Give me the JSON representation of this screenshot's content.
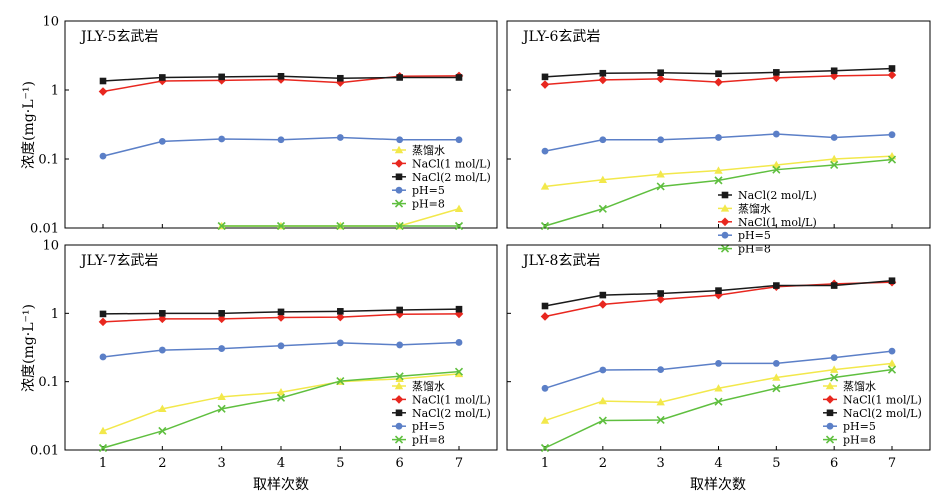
{
  "figure": {
    "xlabel": "取样次数",
    "ylabel": "浓度(mg·L⁻¹)",
    "x_ticks": [
      "1",
      "2",
      "3",
      "4",
      "5",
      "6",
      "7"
    ],
    "y_ticks": [
      "10",
      "1",
      "0.1",
      "0.01"
    ]
  },
  "chart_data": [
    {
      "type": "line",
      "title": "JLY-5玄武岩",
      "yscale": "log",
      "ylim": [
        0.01,
        10
      ],
      "x": [
        1,
        2,
        3,
        4,
        5,
        6,
        7
      ],
      "legend_position": "bottom-right",
      "legend_order": [
        0,
        1,
        2,
        3,
        4
      ],
      "series": [
        {
          "name": "蒸馏水",
          "color": "#f2e84b",
          "marker": "triangle",
          "values": [
            null,
            null,
            0.009,
            0.009,
            0.009,
            0.0095,
            0.019
          ]
        },
        {
          "name": "NaCl(1 mol/L)",
          "color": "#e8271f",
          "marker": "diamond",
          "values": [
            0.95,
            1.35,
            1.38,
            1.42,
            1.28,
            1.58,
            1.6
          ]
        },
        {
          "name": "NaCl(2 mol/L)",
          "color": "#1a1a1a",
          "marker": "square",
          "values": [
            1.35,
            1.52,
            1.55,
            1.58,
            1.48,
            1.52,
            1.52
          ]
        },
        {
          "name": "pH=5",
          "color": "#5b7fc7",
          "marker": "circle",
          "values": [
            0.11,
            0.18,
            0.195,
            0.19,
            0.205,
            0.19,
            0.19
          ]
        },
        {
          "name": "pH=8",
          "color": "#5fbf3f",
          "marker": "cross",
          "values": [
            null,
            null,
            0.009,
            0.009,
            0.009,
            0.009,
            0.009
          ]
        }
      ]
    },
    {
      "type": "line",
      "title": "JLY-6玄武岩",
      "yscale": "log",
      "ylim": [
        0.01,
        10
      ],
      "x": [
        1,
        2,
        3,
        4,
        5,
        6,
        7
      ],
      "legend_position": "bottom-center",
      "legend_order": [
        2,
        0,
        1,
        3,
        4
      ],
      "series": [
        {
          "name": "蒸馏水",
          "color": "#f2e84b",
          "marker": "triangle",
          "values": [
            0.04,
            0.05,
            0.06,
            0.068,
            0.082,
            0.1,
            0.11
          ]
        },
        {
          "name": "NaCl(1 mol/L)",
          "color": "#e8271f",
          "marker": "diamond",
          "values": [
            1.2,
            1.4,
            1.45,
            1.3,
            1.5,
            1.6,
            1.65
          ]
        },
        {
          "name": "NaCl(2 mol/L)",
          "color": "#1a1a1a",
          "marker": "square",
          "values": [
            1.55,
            1.75,
            1.78,
            1.72,
            1.8,
            1.9,
            2.05
          ]
        },
        {
          "name": "pH=5",
          "color": "#5b7fc7",
          "marker": "circle",
          "values": [
            0.13,
            0.19,
            0.19,
            0.205,
            0.23,
            0.205,
            0.225
          ]
        },
        {
          "name": "pH=8",
          "color": "#5fbf3f",
          "marker": "cross",
          "values": [
            0.009,
            0.019,
            0.04,
            0.049,
            0.07,
            0.082,
            0.098
          ]
        }
      ]
    },
    {
      "type": "line",
      "title": "JLY-7玄武岩",
      "yscale": "log",
      "ylim": [
        0.01,
        10
      ],
      "x": [
        1,
        2,
        3,
        4,
        5,
        6,
        7
      ],
      "legend_position": "bottom-right",
      "legend_order": [
        0,
        1,
        2,
        3,
        4
      ],
      "series": [
        {
          "name": "蒸馏水",
          "color": "#f2e84b",
          "marker": "triangle",
          "values": [
            0.019,
            0.04,
            0.06,
            0.07,
            0.1,
            0.11,
            0.13
          ]
        },
        {
          "name": "NaCl(1 mol/L)",
          "color": "#e8271f",
          "marker": "diamond",
          "values": [
            0.75,
            0.83,
            0.83,
            0.87,
            0.88,
            0.97,
            0.98
          ]
        },
        {
          "name": "NaCl(2 mol/L)",
          "color": "#1a1a1a",
          "marker": "square",
          "values": [
            0.98,
            1.0,
            1.0,
            1.05,
            1.07,
            1.12,
            1.15
          ]
        },
        {
          "name": "pH=5",
          "color": "#5b7fc7",
          "marker": "circle",
          "values": [
            0.23,
            0.29,
            0.305,
            0.335,
            0.37,
            0.345,
            0.375
          ]
        },
        {
          "name": "pH=8",
          "color": "#5fbf3f",
          "marker": "cross",
          "values": [
            0.0098,
            0.019,
            0.04,
            0.058,
            0.102,
            0.12,
            0.14
          ]
        }
      ]
    },
    {
      "type": "line",
      "title": "JLY-8玄武岩",
      "yscale": "log",
      "ylim": [
        0.01,
        10
      ],
      "x": [
        1,
        2,
        3,
        4,
        5,
        6,
        7
      ],
      "legend_position": "bottom-right",
      "legend_order": [
        0,
        1,
        2,
        3,
        4
      ],
      "series": [
        {
          "name": "蒸馏水",
          "color": "#f2e84b",
          "marker": "triangle",
          "values": [
            0.027,
            0.052,
            0.05,
            0.08,
            0.115,
            0.15,
            0.185
          ]
        },
        {
          "name": "NaCl(1 mol/L)",
          "color": "#e8271f",
          "marker": "diamond",
          "values": [
            0.9,
            1.35,
            1.6,
            1.85,
            2.45,
            2.7,
            2.85
          ]
        },
        {
          "name": "NaCl(2 mol/L)",
          "color": "#1a1a1a",
          "marker": "square",
          "values": [
            1.28,
            1.85,
            1.95,
            2.15,
            2.55,
            2.55,
            3.0
          ]
        },
        {
          "name": "pH=5",
          "color": "#5b7fc7",
          "marker": "circle",
          "values": [
            0.08,
            0.148,
            0.15,
            0.185,
            0.185,
            0.225,
            0.28
          ]
        },
        {
          "name": "pH=8",
          "color": "#5fbf3f",
          "marker": "cross",
          "values": [
            0.0098,
            0.027,
            0.0275,
            0.051,
            0.08,
            0.115,
            0.15
          ]
        }
      ]
    }
  ]
}
